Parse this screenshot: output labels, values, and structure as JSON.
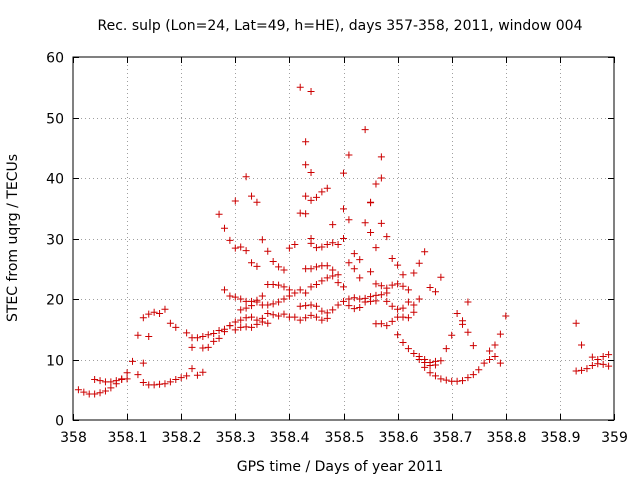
{
  "chart_data": {
    "type": "scatter",
    "title": "Rec. sulp (Lon=24, Lat=49, h=HE), days 357-358, 2011, window 004",
    "xlabel": "GPS time / Days of year 2011",
    "ylabel": "STEC from uqrg / TECUs",
    "xlim": [
      358,
      359
    ],
    "ylim": [
      0,
      60
    ],
    "xticks": [
      358,
      358.1,
      358.2,
      358.3,
      358.4,
      358.5,
      358.6,
      358.7,
      358.8,
      358.9,
      359
    ],
    "xtick_labels": [
      "358",
      "358.1",
      "358.2",
      "358.3",
      "358.4",
      "358.5",
      "358.6",
      "358.7",
      "358.8",
      "358.9",
      "359"
    ],
    "yticks": [
      0,
      10,
      20,
      30,
      40,
      50,
      60
    ],
    "ytick_labels": [
      "0",
      "10",
      "20",
      "30",
      "40",
      "50",
      "60"
    ],
    "grid": true,
    "marker": "+",
    "color": "#cc0000",
    "series": [
      {
        "name": "",
        "points": [
          [
            358.01,
            5.0
          ],
          [
            358.02,
            4.6
          ],
          [
            358.03,
            4.3
          ],
          [
            358.04,
            4.3
          ],
          [
            358.05,
            4.5
          ],
          [
            358.06,
            4.8
          ],
          [
            358.07,
            5.3
          ],
          [
            358.08,
            6.0
          ],
          [
            358.09,
            6.8
          ],
          [
            358.1,
            7.8
          ],
          [
            358.11,
            9.7
          ],
          [
            358.04,
            6.7
          ],
          [
            358.05,
            6.5
          ],
          [
            358.06,
            6.3
          ],
          [
            358.07,
            6.3
          ],
          [
            358.08,
            6.5
          ],
          [
            358.09,
            6.7
          ],
          [
            358.1,
            6.8
          ],
          [
            358.12,
            7.5
          ],
          [
            358.12,
            14.0
          ],
          [
            358.13,
            16.9
          ],
          [
            358.14,
            17.5
          ],
          [
            358.15,
            17.8
          ],
          [
            358.16,
            17.6
          ],
          [
            358.17,
            18.3
          ],
          [
            358.18,
            16.0
          ],
          [
            358.19,
            15.3
          ],
          [
            358.13,
            9.4
          ],
          [
            358.13,
            6.2
          ],
          [
            358.14,
            5.8
          ],
          [
            358.15,
            5.8
          ],
          [
            358.16,
            5.9
          ],
          [
            358.17,
            6.0
          ],
          [
            358.18,
            6.3
          ],
          [
            358.19,
            6.7
          ],
          [
            358.2,
            7.0
          ],
          [
            358.21,
            7.3
          ],
          [
            358.22,
            8.5
          ],
          [
            358.23,
            7.4
          ],
          [
            358.24,
            7.9
          ],
          [
            358.14,
            13.8
          ],
          [
            358.21,
            14.4
          ],
          [
            358.22,
            13.6
          ],
          [
            358.23,
            13.6
          ],
          [
            358.24,
            13.8
          ],
          [
            358.25,
            14.1
          ],
          [
            358.26,
            14.3
          ],
          [
            358.27,
            14.8
          ],
          [
            358.28,
            15.0
          ],
          [
            358.29,
            15.6
          ],
          [
            358.3,
            16.2
          ],
          [
            358.31,
            16.5
          ],
          [
            358.32,
            16.9
          ],
          [
            358.33,
            17.0
          ],
          [
            358.34,
            16.5
          ],
          [
            358.35,
            16.8
          ],
          [
            358.36,
            17.6
          ],
          [
            358.37,
            17.4
          ],
          [
            358.38,
            17.2
          ],
          [
            358.39,
            17.5
          ],
          [
            358.4,
            17.0
          ],
          [
            358.22,
            12.0
          ],
          [
            358.24,
            11.9
          ],
          [
            358.25,
            12.0
          ],
          [
            358.26,
            13.0
          ],
          [
            358.27,
            13.5
          ],
          [
            358.28,
            14.6
          ],
          [
            358.29,
            15.6
          ],
          [
            358.28,
            21.5
          ],
          [
            358.29,
            20.5
          ],
          [
            358.3,
            20.3
          ],
          [
            358.31,
            20.0
          ],
          [
            358.32,
            19.6
          ],
          [
            358.33,
            19.6
          ],
          [
            358.34,
            19.8
          ],
          [
            358.35,
            20.5
          ],
          [
            358.36,
            22.4
          ],
          [
            358.37,
            22.4
          ],
          [
            358.38,
            22.3
          ],
          [
            358.39,
            22.0
          ],
          [
            358.4,
            21.5
          ],
          [
            358.27,
            34.0
          ],
          [
            358.28,
            31.7
          ],
          [
            358.29,
            29.7
          ],
          [
            358.3,
            28.4
          ],
          [
            358.31,
            28.6
          ],
          [
            358.32,
            28.0
          ],
          [
            358.33,
            26.0
          ],
          [
            358.34,
            25.4
          ],
          [
            358.35,
            29.8
          ],
          [
            358.36,
            27.9
          ],
          [
            358.37,
            26.2
          ],
          [
            358.38,
            25.3
          ],
          [
            358.39,
            24.8
          ],
          [
            358.4,
            28.4
          ],
          [
            358.41,
            29.0
          ],
          [
            358.3,
            36.2
          ],
          [
            358.32,
            40.2
          ],
          [
            358.33,
            37.0
          ],
          [
            358.34,
            36.0
          ],
          [
            358.31,
            18.2
          ],
          [
            358.32,
            18.5
          ],
          [
            358.33,
            18.9
          ],
          [
            358.34,
            19.5
          ],
          [
            358.35,
            19.0
          ],
          [
            358.36,
            19.0
          ],
          [
            358.37,
            19.2
          ],
          [
            358.38,
            19.5
          ],
          [
            358.39,
            20.0
          ],
          [
            358.4,
            20.5
          ],
          [
            358.41,
            21.0
          ],
          [
            358.3,
            14.9
          ],
          [
            358.31,
            15.3
          ],
          [
            358.32,
            15.4
          ],
          [
            358.33,
            15.3
          ],
          [
            358.34,
            15.8
          ],
          [
            358.35,
            16.2
          ],
          [
            358.36,
            16.0
          ],
          [
            358.42,
            55.0
          ],
          [
            358.44,
            54.3
          ],
          [
            358.43,
            46.0
          ],
          [
            358.43,
            42.2
          ],
          [
            358.44,
            40.9
          ],
          [
            358.42,
            34.2
          ],
          [
            358.43,
            34.1
          ],
          [
            358.44,
            30.0
          ],
          [
            358.43,
            37.0
          ],
          [
            358.44,
            36.3
          ],
          [
            358.45,
            36.8
          ],
          [
            358.46,
            37.7
          ],
          [
            358.47,
            38.3
          ],
          [
            358.48,
            32.3
          ],
          [
            358.44,
            29.2
          ],
          [
            358.45,
            28.5
          ],
          [
            358.46,
            28.6
          ],
          [
            358.47,
            29.0
          ],
          [
            358.48,
            29.3
          ],
          [
            358.49,
            29.0
          ],
          [
            358.5,
            30.0
          ],
          [
            358.51,
            33.1
          ],
          [
            358.52,
            27.5
          ],
          [
            358.53,
            26.5
          ],
          [
            358.42,
            21.5
          ],
          [
            358.43,
            21.0
          ],
          [
            358.44,
            22.0
          ],
          [
            358.45,
            22.4
          ],
          [
            358.46,
            23.0
          ],
          [
            358.47,
            23.5
          ],
          [
            358.48,
            23.8
          ],
          [
            358.49,
            22.7
          ],
          [
            358.5,
            22.0
          ],
          [
            358.51,
            20.0
          ],
          [
            358.52,
            20.2
          ],
          [
            358.53,
            20.0
          ],
          [
            358.54,
            20.1
          ],
          [
            358.55,
            20.4
          ],
          [
            358.56,
            20.6
          ],
          [
            358.42,
            18.8
          ],
          [
            358.43,
            18.9
          ],
          [
            358.44,
            19.0
          ],
          [
            358.45,
            18.8
          ],
          [
            358.46,
            18.0
          ],
          [
            358.47,
            17.7
          ],
          [
            358.48,
            18.2
          ],
          [
            358.49,
            19.0
          ],
          [
            358.5,
            19.6
          ],
          [
            358.51,
            18.9
          ],
          [
            358.52,
            18.4
          ],
          [
            358.53,
            18.6
          ],
          [
            358.54,
            19.5
          ],
          [
            358.55,
            19.6
          ],
          [
            358.56,
            19.7
          ],
          [
            358.57,
            20.7
          ],
          [
            358.58,
            21.0
          ],
          [
            358.41,
            17.0
          ],
          [
            358.42,
            16.5
          ],
          [
            358.43,
            16.9
          ],
          [
            358.44,
            17.3
          ],
          [
            358.45,
            17.0
          ],
          [
            358.46,
            16.5
          ],
          [
            358.47,
            16.8
          ],
          [
            358.43,
            25.0
          ],
          [
            358.44,
            25.0
          ],
          [
            358.45,
            25.3
          ],
          [
            358.46,
            25.5
          ],
          [
            358.47,
            25.5
          ],
          [
            358.48,
            24.8
          ],
          [
            358.49,
            24.0
          ],
          [
            358.5,
            40.8
          ],
          [
            358.51,
            43.8
          ],
          [
            358.5,
            34.9
          ],
          [
            358.54,
            48.0
          ],
          [
            358.56,
            39.0
          ],
          [
            358.57,
            40.0
          ],
          [
            358.57,
            43.5
          ],
          [
            358.55,
            35.9
          ],
          [
            358.55,
            36.0
          ],
          [
            358.57,
            32.5
          ],
          [
            358.54,
            32.6
          ],
          [
            358.55,
            31.0
          ],
          [
            358.58,
            30.3
          ],
          [
            358.56,
            28.5
          ],
          [
            358.59,
            26.7
          ],
          [
            358.6,
            25.6
          ],
          [
            358.61,
            24.0
          ],
          [
            358.55,
            24.5
          ],
          [
            358.56,
            22.5
          ],
          [
            358.57,
            22.2
          ],
          [
            358.58,
            21.8
          ],
          [
            358.59,
            22.3
          ],
          [
            358.6,
            22.5
          ],
          [
            358.61,
            22.1
          ],
          [
            358.62,
            21.5
          ],
          [
            358.63,
            24.3
          ],
          [
            358.64,
            25.9
          ],
          [
            358.65,
            27.8
          ],
          [
            358.66,
            21.9
          ],
          [
            358.67,
            21.2
          ],
          [
            358.68,
            23.6
          ],
          [
            358.51,
            26.0
          ],
          [
            358.52,
            25.0
          ],
          [
            358.53,
            23.5
          ],
          [
            358.56,
            15.9
          ],
          [
            358.57,
            15.9
          ],
          [
            358.58,
            15.6
          ],
          [
            358.59,
            16.3
          ],
          [
            358.6,
            17.0
          ],
          [
            358.61,
            17.0
          ],
          [
            358.62,
            16.9
          ],
          [
            358.63,
            17.8
          ],
          [
            358.64,
            20.0
          ],
          [
            358.58,
            19.6
          ],
          [
            358.59,
            18.8
          ],
          [
            358.6,
            18.3
          ],
          [
            358.61,
            18.5
          ],
          [
            358.62,
            19.5
          ],
          [
            358.63,
            19.0
          ],
          [
            358.6,
            14.1
          ],
          [
            358.61,
            12.8
          ],
          [
            358.62,
            11.8
          ],
          [
            358.63,
            11.0
          ],
          [
            358.64,
            10.5
          ],
          [
            358.65,
            9.5
          ],
          [
            358.66,
            9.0
          ],
          [
            358.67,
            9.1
          ],
          [
            358.64,
            10.0
          ],
          [
            358.65,
            10.0
          ],
          [
            358.66,
            9.5
          ],
          [
            358.67,
            9.7
          ],
          [
            358.68,
            9.8
          ],
          [
            358.65,
            8.7
          ],
          [
            358.66,
            7.8
          ],
          [
            358.67,
            7.3
          ],
          [
            358.68,
            6.8
          ],
          [
            358.69,
            6.6
          ],
          [
            358.7,
            6.4
          ],
          [
            358.71,
            6.4
          ],
          [
            358.72,
            6.5
          ],
          [
            358.73,
            7.0
          ],
          [
            358.74,
            7.5
          ],
          [
            358.75,
            8.3
          ],
          [
            358.76,
            9.4
          ],
          [
            358.77,
            10.0
          ],
          [
            358.78,
            10.5
          ],
          [
            358.79,
            9.4
          ],
          [
            358.69,
            11.8
          ],
          [
            358.7,
            14.0
          ],
          [
            358.71,
            17.6
          ],
          [
            358.72,
            16.4
          ],
          [
            358.72,
            15.8
          ],
          [
            358.73,
            14.5
          ],
          [
            358.73,
            19.5
          ],
          [
            358.74,
            12.3
          ],
          [
            358.77,
            11.4
          ],
          [
            358.78,
            12.4
          ],
          [
            358.79,
            14.2
          ],
          [
            358.8,
            17.2
          ],
          [
            358.93,
            16.0
          ],
          [
            358.94,
            12.4
          ],
          [
            358.93,
            8.1
          ],
          [
            358.94,
            8.2
          ],
          [
            358.95,
            8.5
          ],
          [
            358.96,
            9.0
          ],
          [
            358.97,
            9.3
          ],
          [
            358.98,
            9.2
          ],
          [
            358.99,
            8.9
          ],
          [
            358.96,
            10.4
          ],
          [
            358.97,
            10.0
          ],
          [
            358.98,
            10.5
          ],
          [
            358.99,
            10.8
          ]
        ]
      }
    ]
  }
}
